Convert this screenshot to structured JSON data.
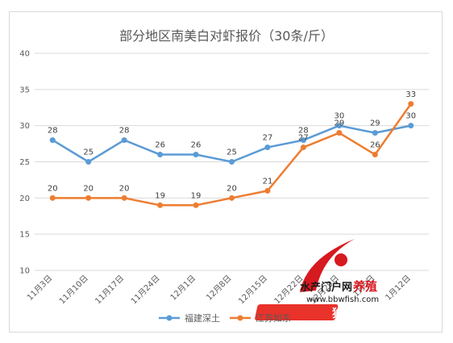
{
  "chart_data": {
    "type": "line",
    "title": "部分地区南美白对虾报价（30条/斤）",
    "categories": [
      "11月3日",
      "11月10日",
      "11月17日",
      "11月24日",
      "12月1日",
      "12月8日",
      "12月15日",
      "12月22日",
      "12月29日",
      "1月5日",
      "1月12日"
    ],
    "series": [
      {
        "name": "福建深土",
        "color": "#5b9bd5",
        "values": [
          28,
          25,
          28,
          26,
          26,
          25,
          27,
          28,
          30,
          29,
          30
        ]
      },
      {
        "name": "江苏如东",
        "color": "#ed7d31",
        "values": [
          20,
          20,
          20,
          19,
          19,
          20,
          21,
          27,
          29,
          26,
          33
        ]
      }
    ],
    "ylim": [
      10,
      40
    ],
    "yticks": [
      10,
      15,
      20,
      25,
      30,
      35,
      40
    ],
    "grid": true,
    "legend_position": "bottom"
  },
  "watermark": {
    "line1": "水产门户网",
    "line1b": "养殖",
    "url": "www.bbwfish.com",
    "slogan": "独家报道"
  }
}
